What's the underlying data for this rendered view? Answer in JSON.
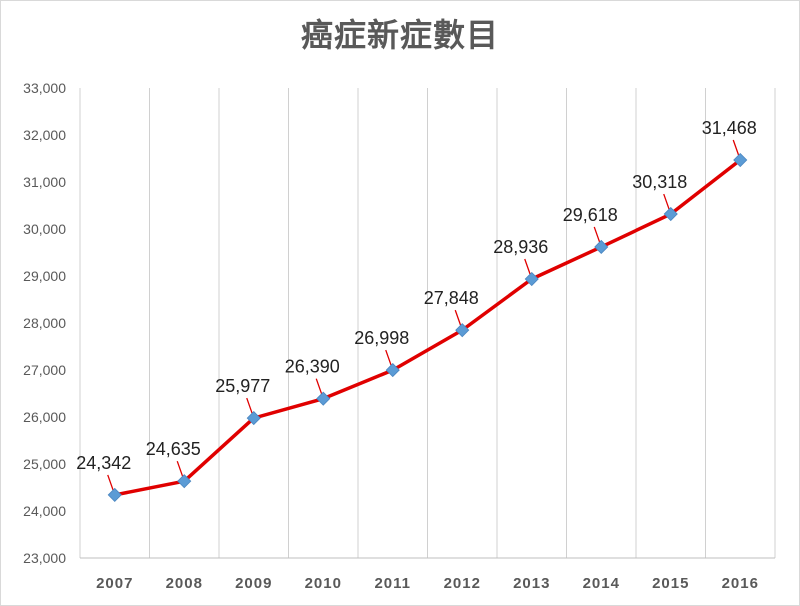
{
  "chart_data": {
    "type": "line",
    "title": "癌症新症數目",
    "xlabel": "",
    "ylabel": "",
    "categories": [
      "2007",
      "2008",
      "2009",
      "2010",
      "2011",
      "2012",
      "2013",
      "2014",
      "2015",
      "2016"
    ],
    "series": [
      {
        "values": [
          24342,
          24635,
          25977,
          26390,
          26998,
          27848,
          28936,
          29618,
          30318,
          31468
        ],
        "data_labels": [
          "24,342",
          "24,635",
          "25,977",
          "26,390",
          "26,998",
          "27,848",
          "28,936",
          "29,618",
          "30,318",
          "31,468"
        ],
        "color": "#e00000",
        "marker_color": "#5b9bd5",
        "marker": "diamond"
      }
    ],
    "ylim": [
      23000,
      33000
    ],
    "y_ticks": [
      23000,
      24000,
      25000,
      26000,
      27000,
      28000,
      29000,
      30000,
      31000,
      32000,
      33000
    ],
    "y_tick_labels": [
      "23,000",
      "24,000",
      "25,000",
      "26,000",
      "27,000",
      "28,000",
      "29,000",
      "30,000",
      "31,000",
      "32,000",
      "33,000"
    ],
    "grid": "vertical",
    "legend": "none",
    "leader_color": "#e00000"
  }
}
